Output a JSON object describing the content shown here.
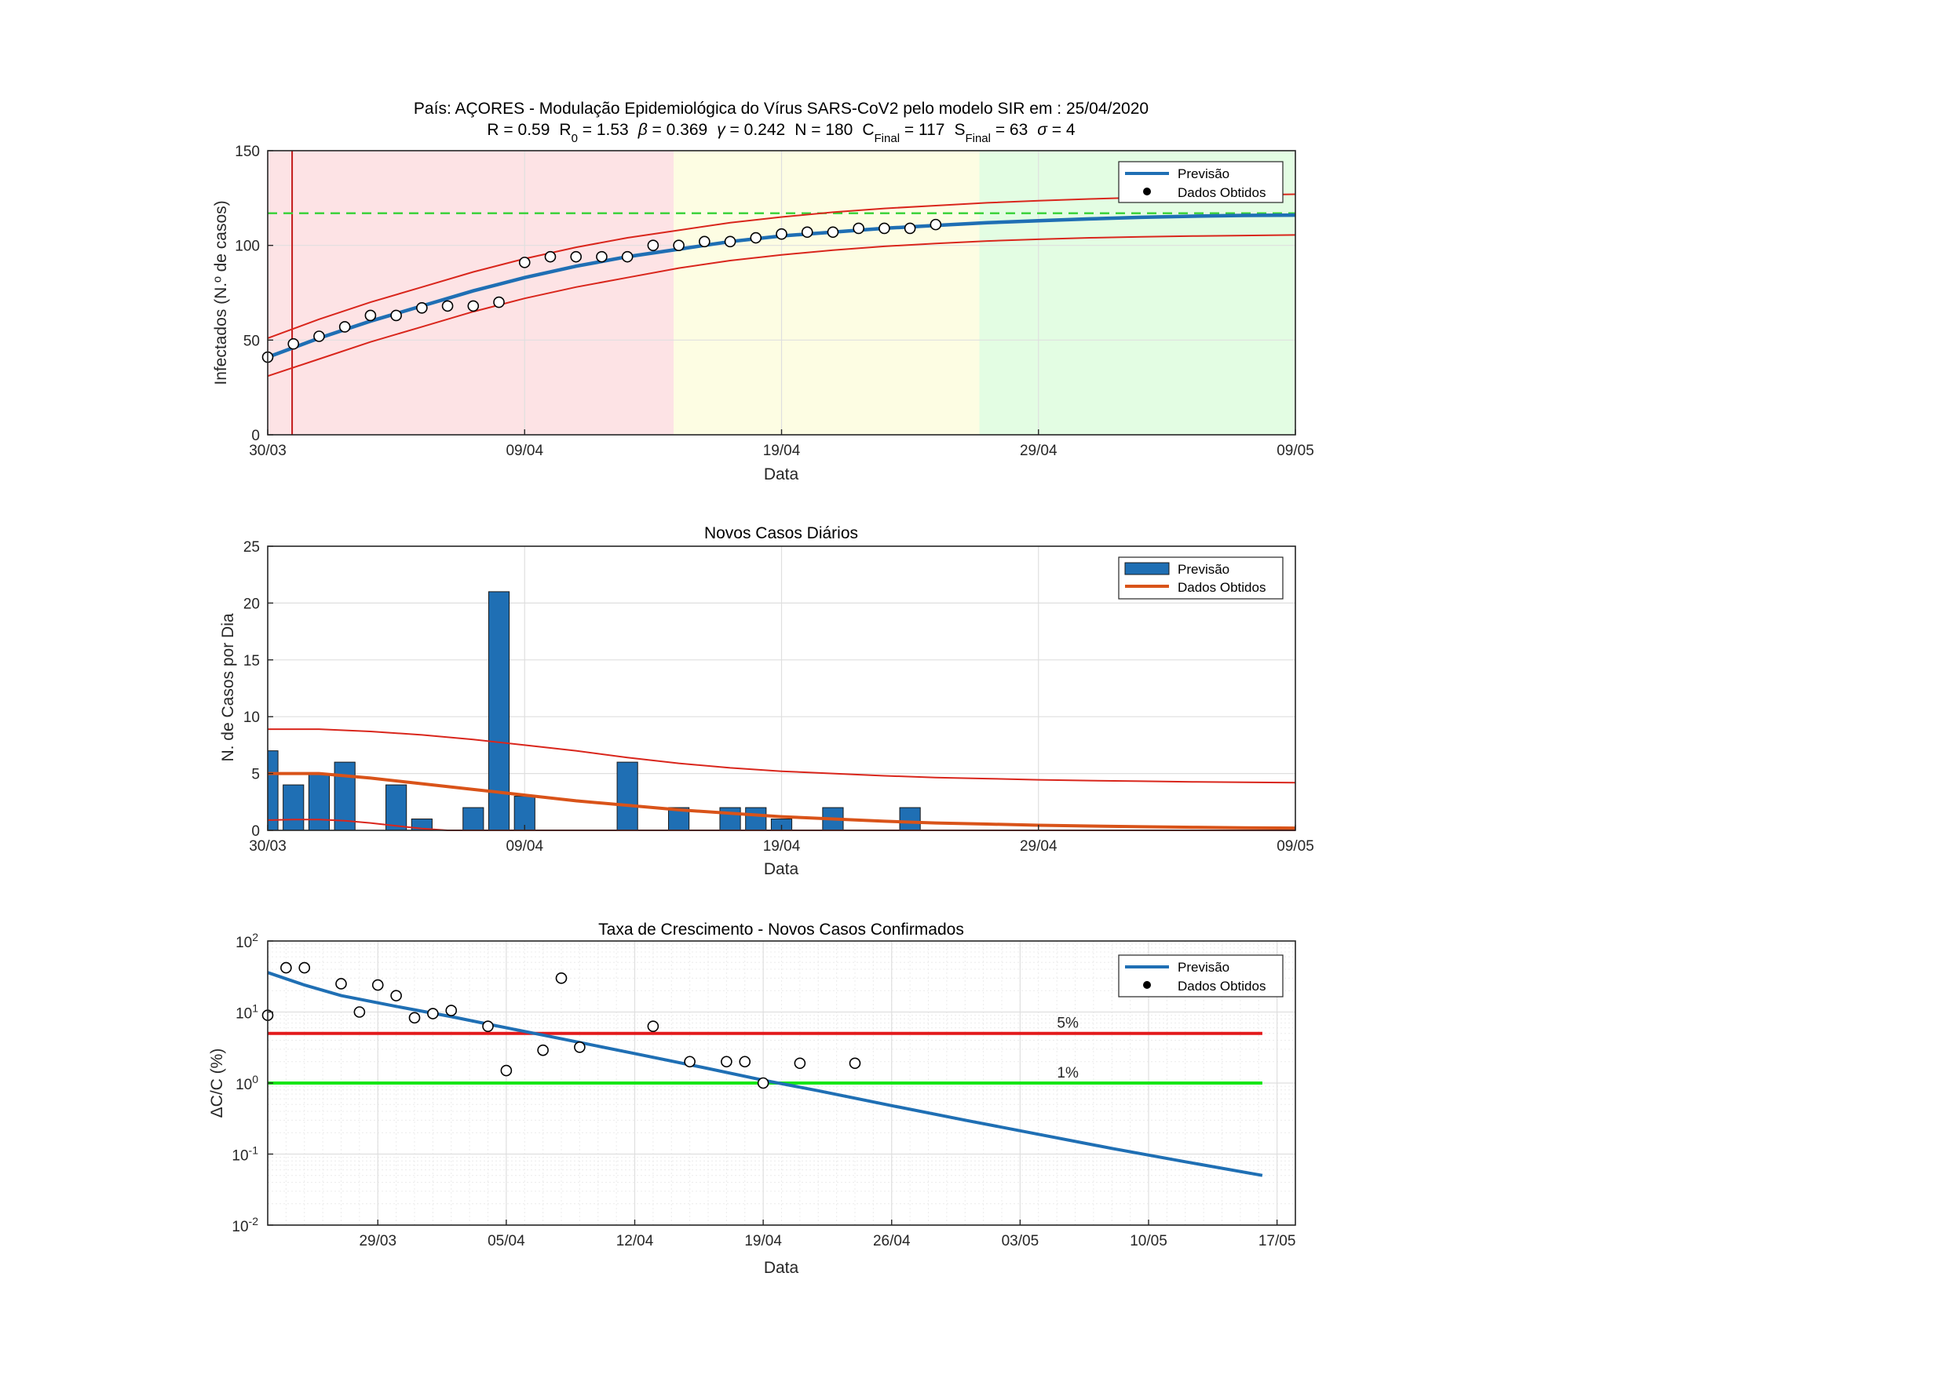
{
  "chart_data": [
    {
      "type": "line",
      "title": "País: AÇORES - Modulação Epidemiológica do Vírus SARS-CoV2 pelo modelo SIR em : 25/04/2020",
      "params": [
        {
          "name": "R",
          "sub": "",
          "value": "0.59"
        },
        {
          "name": "R",
          "sub": "0",
          "value": "1.53"
        },
        {
          "name": "β",
          "sub": "",
          "value": "0.369"
        },
        {
          "name": "γ",
          "sub": "",
          "value": "0.242"
        },
        {
          "name": "N",
          "sub": "",
          "value": "180"
        },
        {
          "name": "C",
          "sub": "Final",
          "value": "117"
        },
        {
          "name": "S",
          "sub": "Final",
          "value": "63"
        },
        {
          "name": "σ",
          "sub": "",
          "value": "4"
        }
      ],
      "xlabel": "Data",
      "ylabel": "Infectados (N.º de casos)",
      "xlim": [
        0,
        40
      ],
      "ylim": [
        0,
        150
      ],
      "xticks": [
        {
          "v": 0,
          "label": "30/03"
        },
        {
          "v": 10,
          "label": "09/04"
        },
        {
          "v": 20,
          "label": "19/04"
        },
        {
          "v": 30,
          "label": "29/04"
        },
        {
          "v": 40,
          "label": "09/05"
        }
      ],
      "yticks": [
        0,
        50,
        100,
        150
      ],
      "shaded_regions": [
        {
          "from": 0,
          "to": 15.8,
          "color": "#fde3e5"
        },
        {
          "from": 15.8,
          "to": 27.7,
          "color": "#fdfde3"
        },
        {
          "from": 27.7,
          "to": 40,
          "color": "#e3fde3"
        }
      ],
      "vertical_line_x": 0.95,
      "final_cases_line_y": 117,
      "grid": true,
      "legend_position": "top-right",
      "legend": [
        "Previsão",
        "Dados Obtidos"
      ],
      "series": [
        {
          "name": "Previsão",
          "kind": "line",
          "color": "#1f6fb4",
          "x": [
            0,
            2,
            4,
            6,
            8,
            10,
            12,
            14,
            16,
            18,
            20,
            22,
            24,
            26,
            28,
            30,
            32,
            34,
            36,
            38,
            40
          ],
          "y": [
            41,
            51,
            60,
            68,
            76,
            83,
            89,
            94,
            98,
            102,
            105,
            107,
            109,
            110.5,
            112,
            113,
            114,
            114.8,
            115.4,
            115.8,
            116
          ]
        },
        {
          "name": "upper",
          "kind": "line",
          "color": "#d9261c",
          "x": [
            0,
            2,
            4,
            6,
            8,
            10,
            12,
            14,
            16,
            18,
            20,
            22,
            24,
            26,
            28,
            30,
            32,
            34,
            36,
            38,
            40
          ],
          "y": [
            51,
            61,
            70,
            78,
            86,
            93,
            99,
            104,
            108,
            112,
            115,
            117.5,
            119.5,
            121,
            122.5,
            123.6,
            124.5,
            125.3,
            126,
            126.6,
            127
          ]
        },
        {
          "name": "lower",
          "kind": "line",
          "color": "#d9261c",
          "x": [
            0,
            2,
            4,
            6,
            8,
            10,
            12,
            14,
            16,
            18,
            20,
            22,
            24,
            26,
            28,
            30,
            32,
            34,
            36,
            38,
            40
          ],
          "y": [
            31,
            40,
            49,
            57,
            65,
            72,
            78,
            83,
            88,
            92,
            95,
            97.5,
            99.5,
            101,
            102.3,
            103.2,
            104,
            104.5,
            104.9,
            105.2,
            105.5
          ]
        },
        {
          "name": "Dados Obtidos",
          "kind": "scatter",
          "color": "#000000",
          "x": [
            0,
            1,
            2,
            3,
            4,
            5,
            6,
            7,
            8,
            9,
            10,
            11,
            12,
            13,
            14,
            15,
            16,
            17,
            18,
            19,
            20,
            21,
            22,
            23,
            24,
            25,
            26
          ],
          "y": [
            41,
            48,
            52,
            57,
            63,
            63,
            67,
            68,
            68,
            70,
            91,
            94,
            94,
            94,
            94,
            100,
            100,
            102,
            102,
            104,
            106,
            107,
            107,
            109,
            109,
            109,
            111
          ]
        }
      ]
    },
    {
      "type": "bar",
      "title": "Novos Casos Diários",
      "xlabel": "Data",
      "ylabel": "N. de Casos por Dia",
      "xlim": [
        0,
        40
      ],
      "ylim": [
        0,
        25
      ],
      "xticks": [
        {
          "v": 0,
          "label": "30/03"
        },
        {
          "v": 10,
          "label": "09/04"
        },
        {
          "v": 20,
          "label": "19/04"
        },
        {
          "v": 30,
          "label": "29/04"
        },
        {
          "v": 40,
          "label": "09/05"
        }
      ],
      "yticks": [
        0,
        5,
        10,
        15,
        20,
        25
      ],
      "grid": true,
      "legend_position": "top-right",
      "legend": [
        "Previsão",
        "Dados Obtidos"
      ],
      "bars": {
        "color": "#1f6fb4",
        "x": [
          0,
          1,
          2,
          3,
          5,
          6,
          8,
          9,
          10,
          14,
          16,
          18,
          19,
          20,
          22,
          25
        ],
        "values": [
          7,
          4,
          5,
          6,
          4,
          1,
          2,
          21,
          3,
          6,
          2,
          2,
          2,
          1,
          2,
          2
        ]
      },
      "series": [
        {
          "name": "Dados Obtidos",
          "kind": "line",
          "color": "#d95319",
          "x": [
            0,
            2,
            4,
            6,
            8,
            10,
            12,
            14,
            16,
            18,
            20,
            22,
            24,
            26,
            28,
            30,
            32,
            34,
            36,
            38,
            40
          ],
          "y": [
            5,
            5,
            4.6,
            4.1,
            3.6,
            3.1,
            2.6,
            2.2,
            1.8,
            1.5,
            1.2,
            1.0,
            0.8,
            0.65,
            0.55,
            0.45,
            0.38,
            0.32,
            0.27,
            0.23,
            0.2
          ]
        },
        {
          "name": "upper",
          "kind": "line",
          "color": "#d9261c",
          "x": [
            0,
            2,
            4,
            6,
            8,
            10,
            12,
            14,
            16,
            18,
            20,
            22,
            24,
            26,
            28,
            30,
            32,
            34,
            36,
            38,
            40
          ],
          "y": [
            8.9,
            8.9,
            8.7,
            8.4,
            8.0,
            7.5,
            7.0,
            6.4,
            5.9,
            5.5,
            5.2,
            5.0,
            4.8,
            4.65,
            4.55,
            4.45,
            4.38,
            4.32,
            4.27,
            4.23,
            4.2
          ]
        },
        {
          "name": "lower",
          "kind": "line",
          "color": "#d9261c",
          "x": [
            0,
            1,
            2,
            3,
            4,
            5,
            6,
            7,
            40
          ],
          "y": [
            0.9,
            0.95,
            0.95,
            0.85,
            0.65,
            0.4,
            0.15,
            0,
            0
          ]
        }
      ]
    },
    {
      "type": "line",
      "title": "Taxa de Crescimento - Novos Casos Confirmados",
      "xlabel": "Data",
      "ylabel": "ΔC/C (%)",
      "yscale": "log",
      "xlim": [
        0,
        56
      ],
      "ylim": [
        0.01,
        100
      ],
      "xticks": [
        {
          "v": 6,
          "label": "29/03"
        },
        {
          "v": 13,
          "label": "05/04"
        },
        {
          "v": 20,
          "label": "12/04"
        },
        {
          "v": 27,
          "label": "19/04"
        },
        {
          "v": 34,
          "label": "26/04"
        },
        {
          "v": 41,
          "label": "03/05"
        },
        {
          "v": 48,
          "label": "10/05"
        },
        {
          "v": 55,
          "label": "17/05"
        }
      ],
      "yticks": [
        {
          "v": 0.01,
          "base": "10",
          "exp": "-2"
        },
        {
          "v": 0.1,
          "base": "10",
          "exp": "-1"
        },
        {
          "v": 1,
          "base": "10",
          "exp": "0"
        },
        {
          "v": 10,
          "base": "10",
          "exp": "1"
        },
        {
          "v": 100,
          "base": "10",
          "exp": "2"
        }
      ],
      "grid": true,
      "legend_position": "top-right",
      "legend": [
        "Previsão",
        "Dados Obtidos"
      ],
      "hlines": [
        {
          "y": 5,
          "color": "#e31a1c",
          "label": "5%",
          "x_end": 54.2
        },
        {
          "y": 1,
          "color": "#17e617",
          "label": "1%",
          "x_end": 54.2
        }
      ],
      "series": [
        {
          "name": "Previsão",
          "kind": "line",
          "color": "#1f6fb4",
          "x": [
            0,
            2,
            4,
            7,
            10,
            13,
            16,
            20,
            24,
            27,
            30,
            34,
            38,
            42,
            46,
            50,
            54.2
          ],
          "y": [
            36,
            24,
            17,
            12,
            8.6,
            6.0,
            4.2,
            2.6,
            1.6,
            1.1,
            0.78,
            0.48,
            0.3,
            0.19,
            0.12,
            0.078,
            0.05
          ]
        },
        {
          "name": "Dados Obtidos",
          "kind": "scatter",
          "color": "#000000",
          "x": [
            0,
            1,
            2,
            4,
            5,
            6,
            7,
            8,
            9,
            10,
            12,
            13,
            15,
            16,
            17,
            21,
            23,
            25,
            26,
            27,
            29,
            32
          ],
          "y": [
            9,
            42,
            42,
            25,
            10,
            24,
            17,
            8.3,
            9.5,
            10.5,
            6.3,
            1.5,
            2.9,
            30,
            3.2,
            6.3,
            2.0,
            2.0,
            2.0,
            1.0,
            1.9,
            1.9
          ]
        }
      ]
    }
  ]
}
